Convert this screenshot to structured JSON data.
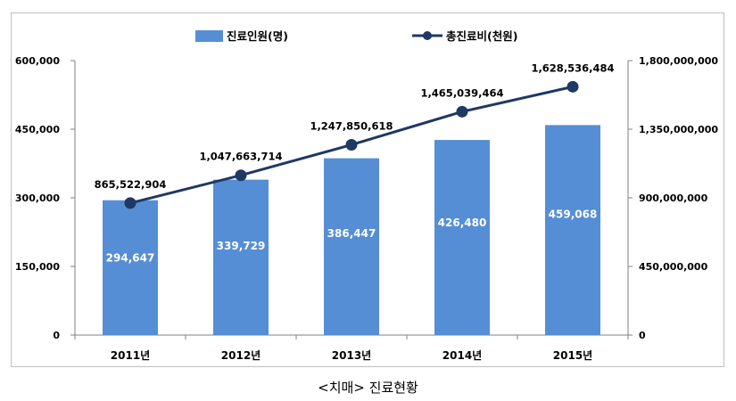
{
  "caption": "<치매> 진료현황",
  "chart_data": {
    "type": "bar+line",
    "categories": [
      "2011년",
      "2012년",
      "2013년",
      "2014년",
      "2015년"
    ],
    "series": [
      {
        "name": "진료인원(명)",
        "type": "bar",
        "axis": "left",
        "color": "#558ED5",
        "values": [
          294647,
          339729,
          386447,
          426480,
          459068
        ],
        "labels": [
          "294,647",
          "339,729",
          "386,447",
          "426,480",
          "459,068"
        ]
      },
      {
        "name": "총진료비(천원)",
        "type": "line",
        "axis": "right",
        "color": "#1F3864",
        "values": [
          865522904,
          1047663714,
          1247850618,
          1465039464,
          1628536484
        ],
        "labels": [
          "865,522,904",
          "1,047,663,714",
          "1,247,850,618",
          "1,465,039,464",
          "1,628,536,484"
        ]
      }
    ],
    "left_axis": {
      "ylim": [
        0,
        600000
      ],
      "ticks": [
        "0",
        "150,000",
        "300,000",
        "450,000",
        "600,000"
      ]
    },
    "right_axis": {
      "ylim": [
        0,
        1800000000
      ],
      "ticks": [
        "0",
        "450,000,000",
        "900,000,000",
        "1,350,000,000",
        "1,800,000,000"
      ]
    },
    "grid": false,
    "legend_position": "top-center"
  }
}
